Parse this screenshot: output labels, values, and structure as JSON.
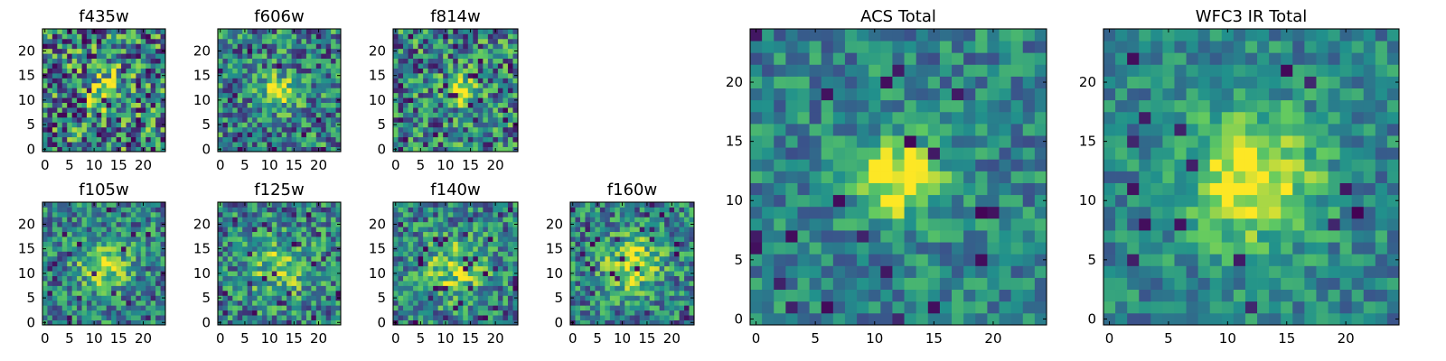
{
  "chart_data": [
    {
      "id": "f435w",
      "type": "heatmap",
      "title": "f435w",
      "grid_size": 25,
      "seed": 11,
      "blob_center": [
        12,
        12
      ],
      "blob_sigma": 3.0,
      "blob_amp": 0.35,
      "noise": 0.45,
      "hot_pixel_rate": 0.06,
      "xticks": [
        0,
        5,
        10,
        15,
        20
      ],
      "yticks": [
        0,
        5,
        10,
        15,
        20
      ],
      "xlim": [
        0,
        24
      ],
      "ylim": [
        0,
        24
      ]
    },
    {
      "id": "f606w",
      "type": "heatmap",
      "title": "f606w",
      "grid_size": 25,
      "seed": 22,
      "blob_center": [
        12,
        12
      ],
      "blob_sigma": 2.2,
      "blob_amp": 0.6,
      "noise": 0.35,
      "hot_pixel_rate": 0.04,
      "xticks": [
        0,
        5,
        10,
        15,
        20
      ],
      "yticks": [
        0,
        5,
        10,
        15,
        20
      ],
      "xlim": [
        0,
        24
      ],
      "ylim": [
        0,
        24
      ]
    },
    {
      "id": "f814w",
      "type": "heatmap",
      "title": "f814w",
      "grid_size": 25,
      "seed": 33,
      "blob_center": [
        13,
        12
      ],
      "blob_sigma": 2.2,
      "blob_amp": 0.6,
      "noise": 0.38,
      "hot_pixel_rate": 0.06,
      "xticks": [
        0,
        5,
        10,
        15,
        20
      ],
      "yticks": [
        0,
        5,
        10,
        15,
        20
      ],
      "xlim": [
        0,
        24
      ],
      "ylim": [
        0,
        24
      ]
    },
    {
      "id": "f105w",
      "type": "heatmap",
      "title": "f105w",
      "grid_size": 25,
      "seed": 44,
      "blob_center": [
        12,
        12
      ],
      "blob_sigma": 3.5,
      "blob_amp": 0.45,
      "noise": 0.3,
      "hot_pixel_rate": 0.04,
      "xticks": [
        0,
        5,
        10,
        15,
        20
      ],
      "yticks": [
        0,
        5,
        10,
        15,
        20
      ],
      "xlim": [
        0,
        24
      ],
      "ylim": [
        0,
        24
      ]
    },
    {
      "id": "f125w",
      "type": "heatmap",
      "title": "f125w",
      "grid_size": 25,
      "seed": 55,
      "blob_center": [
        12,
        11
      ],
      "blob_sigma": 4.0,
      "blob_amp": 0.35,
      "noise": 0.32,
      "hot_pixel_rate": 0.04,
      "xticks": [
        0,
        5,
        10,
        15,
        20
      ],
      "yticks": [
        0,
        5,
        10,
        15,
        20
      ],
      "xlim": [
        0,
        24
      ],
      "ylim": [
        0,
        24
      ]
    },
    {
      "id": "f140w",
      "type": "heatmap",
      "title": "f140w",
      "grid_size": 25,
      "seed": 66,
      "blob_center": [
        12,
        11
      ],
      "blob_sigma": 4.5,
      "blob_amp": 0.35,
      "noise": 0.3,
      "hot_pixel_rate": 0.04,
      "xticks": [
        0,
        5,
        10,
        15,
        20
      ],
      "yticks": [
        0,
        5,
        10,
        15,
        20
      ],
      "xlim": [
        0,
        24
      ],
      "ylim": [
        0,
        24
      ]
    },
    {
      "id": "f160w",
      "type": "heatmap",
      "title": "f160w",
      "grid_size": 25,
      "seed": 77,
      "blob_center": [
        12,
        12
      ],
      "blob_sigma": 4.0,
      "blob_amp": 0.45,
      "noise": 0.3,
      "hot_pixel_rate": 0.05,
      "xticks": [
        0,
        5,
        10,
        15,
        20
      ],
      "yticks": [
        0,
        5,
        10,
        15,
        20
      ],
      "xlim": [
        0,
        24
      ],
      "ylim": [
        0,
        24
      ]
    },
    {
      "id": "acs-total",
      "type": "heatmap",
      "title": "ACS Total",
      "grid_size": 25,
      "seed": 88,
      "blob_center": [
        12,
        12
      ],
      "blob_sigma": 2.5,
      "blob_amp": 0.6,
      "noise": 0.22,
      "hot_pixel_rate": 0.025,
      "xticks": [
        0,
        5,
        10,
        15,
        20
      ],
      "yticks": [
        0,
        5,
        10,
        15,
        20
      ],
      "xlim": [
        0,
        24
      ],
      "ylim": [
        0,
        24
      ]
    },
    {
      "id": "wfc3-ir-total",
      "type": "heatmap",
      "title": "WFC3 IR Total",
      "grid_size": 25,
      "seed": 99,
      "blob_center": [
        12,
        12
      ],
      "blob_sigma": 4.0,
      "blob_amp": 0.55,
      "noise": 0.2,
      "hot_pixel_rate": 0.025,
      "xticks": [
        0,
        5,
        10,
        15,
        20
      ],
      "yticks": [
        0,
        5,
        10,
        15,
        20
      ],
      "xlim": [
        0,
        24
      ],
      "ylim": [
        0,
        24
      ]
    }
  ],
  "colormap": [
    "#440154",
    "#3b528b",
    "#21918c",
    "#5ec962",
    "#fde725"
  ]
}
